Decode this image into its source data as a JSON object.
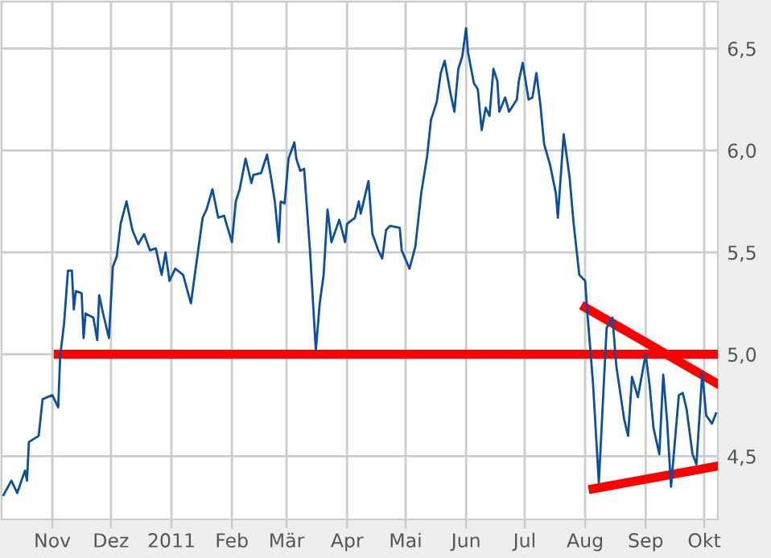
{
  "chart_data": {
    "type": "line",
    "x": [
      "2010-10-07",
      "2010-10-11",
      "2010-10-14",
      "2010-10-18",
      "2010-10-19",
      "2010-10-20",
      "2010-10-25",
      "2010-10-27",
      "2010-11-01",
      "2010-11-04",
      "2010-11-05",
      "2010-11-07",
      "2010-11-09",
      "2010-11-11",
      "2010-11-12",
      "2010-11-13",
      "2010-11-16",
      "2010-11-17",
      "2010-11-18",
      "2010-11-22",
      "2010-11-24",
      "2010-11-25",
      "2010-11-27",
      "2010-11-30",
      "2010-12-02",
      "2010-12-04",
      "2010-12-06",
      "2010-12-09",
      "2010-12-12",
      "2010-12-15",
      "2010-12-18",
      "2010-12-21",
      "2010-12-24",
      "2010-12-27",
      "2010-12-29",
      "2010-12-31",
      "2011-01-03",
      "2011-01-07",
      "2011-01-11",
      "2011-01-13",
      "2011-01-17",
      "2011-01-19",
      "2011-01-22",
      "2011-01-25",
      "2011-01-28",
      "2011-02-01",
      "2011-02-03",
      "2011-02-05",
      "2011-02-08",
      "2011-02-11",
      "2011-02-12",
      "2011-02-16",
      "2011-02-19",
      "2011-02-21",
      "2011-02-23",
      "2011-02-25",
      "2011-02-26",
      "2011-02-28",
      "2011-03-02",
      "2011-03-05",
      "2011-03-06",
      "2011-03-08",
      "2011-03-10",
      "2011-03-13",
      "2011-03-16",
      "2011-03-18",
      "2011-03-20",
      "2011-03-22",
      "2011-03-24",
      "2011-03-28",
      "2011-03-31",
      "2011-04-01",
      "2011-04-05",
      "2011-04-07",
      "2011-04-08",
      "2011-04-12",
      "2011-04-14",
      "2011-04-17",
      "2011-04-19",
      "2011-04-21",
      "2011-04-23",
      "2011-04-28",
      "2011-04-29",
      "2011-05-03",
      "2011-05-06",
      "2011-05-09",
      "2011-05-12",
      "2011-05-14",
      "2011-05-17",
      "2011-05-19",
      "2011-05-21",
      "2011-05-24",
      "2011-05-26",
      "2011-05-28",
      "2011-05-30",
      "2011-06-01",
      "2011-06-02",
      "2011-06-05",
      "2011-06-07",
      "2011-06-09",
      "2011-06-11",
      "2011-06-13",
      "2011-06-15",
      "2011-06-17",
      "2011-06-18",
      "2011-06-21",
      "2011-06-23",
      "2011-06-27",
      "2011-06-28",
      "2011-06-30",
      "2011-07-03",
      "2011-07-05",
      "2011-07-07",
      "2011-07-09",
      "2011-07-11",
      "2011-07-14",
      "2011-07-17",
      "2011-07-18",
      "2011-07-21",
      "2011-07-24",
      "2011-07-26",
      "2011-07-29",
      "2011-08-01",
      "2011-08-02",
      "2011-08-05",
      "2011-08-08",
      "2011-08-12",
      "2011-08-15",
      "2011-08-17",
      "2011-08-21",
      "2011-08-23",
      "2011-08-25",
      "2011-08-28",
      "2011-09-01",
      "2011-09-03",
      "2011-09-05",
      "2011-09-08",
      "2011-09-10",
      "2011-09-12",
      "2011-09-14",
      "2011-09-18",
      "2011-09-20",
      "2011-09-22",
      "2011-09-25",
      "2011-09-27",
      "2011-09-30",
      "2011-10-02",
      "2011-10-05",
      "2011-10-07"
    ],
    "series": [
      {
        "color": "#0a4fa0",
        "values": [
          4.31,
          4.38,
          4.32,
          4.43,
          4.38,
          4.57,
          4.6,
          4.78,
          4.8,
          4.74,
          4.99,
          5.15,
          5.41,
          5.41,
          5.22,
          5.31,
          5.3,
          5.08,
          5.2,
          5.18,
          5.07,
          5.29,
          5.2,
          5.08,
          5.43,
          5.48,
          5.64,
          5.75,
          5.61,
          5.54,
          5.59,
          5.51,
          5.52,
          5.39,
          5.5,
          5.36,
          5.42,
          5.39,
          5.25,
          5.39,
          5.67,
          5.71,
          5.81,
          5.67,
          5.68,
          5.55,
          5.75,
          5.81,
          5.96,
          5.84,
          5.88,
          5.89,
          5.98,
          5.87,
          5.75,
          5.55,
          5.75,
          5.74,
          5.96,
          6.04,
          5.96,
          5.9,
          5.91,
          5.51,
          5.02,
          5.25,
          5.39,
          5.71,
          5.55,
          5.66,
          5.55,
          5.64,
          5.67,
          5.75,
          5.69,
          5.85,
          5.59,
          5.51,
          5.47,
          5.61,
          5.63,
          5.62,
          5.51,
          5.42,
          5.53,
          5.79,
          5.97,
          6.15,
          6.24,
          6.38,
          6.44,
          6.28,
          6.19,
          6.4,
          6.46,
          6.6,
          6.48,
          6.33,
          6.3,
          6.1,
          6.21,
          6.17,
          6.4,
          6.34,
          6.19,
          6.26,
          6.19,
          6.25,
          6.34,
          6.43,
          6.25,
          6.26,
          6.38,
          6.23,
          6.03,
          5.93,
          5.79,
          5.67,
          6.08,
          5.87,
          5.65,
          5.39,
          5.36,
          5.22,
          4.86,
          4.37,
          5.13,
          5.18,
          4.94,
          4.68,
          4.6,
          4.89,
          4.79,
          5.0,
          4.85,
          4.64,
          4.51,
          4.9,
          4.67,
          4.35,
          4.8,
          4.81,
          4.73,
          4.51,
          4.46,
          4.91,
          4.7,
          4.66,
          4.71
        ]
      },
      {
        "type": "line",
        "color": "#ff0000",
        "x": [
          "2010-11-04",
          "2011-10-08"
        ],
        "values": [
          5.0,
          5.0
        ]
      },
      {
        "type": "line",
        "color": "#ff0000",
        "x": [
          "2011-08-01",
          "2011-10-07"
        ],
        "values": [
          5.23,
          4.86
        ]
      },
      {
        "type": "line",
        "color": "#ff0000",
        "x": [
          "2011-08-05",
          "2011-10-07"
        ],
        "values": [
          4.34,
          4.45
        ]
      }
    ],
    "xlim": [
      "2010-10-06",
      "2011-10-08"
    ],
    "xticks": [
      {
        "value": "2010-11-01",
        "label": "Nov"
      },
      {
        "value": "2010-12-01",
        "label": "Dez"
      },
      {
        "value": "2011-01-01",
        "label": "2011"
      },
      {
        "value": "2011-02-01",
        "label": "Feb"
      },
      {
        "value": "2011-03-01",
        "label": "Mär"
      },
      {
        "value": "2011-04-01",
        "label": "Apr"
      },
      {
        "value": "2011-05-01",
        "label": "Mai"
      },
      {
        "value": "2011-06-01",
        "label": "Jun"
      },
      {
        "value": "2011-07-01",
        "label": "Jul"
      },
      {
        "value": "2011-08-01",
        "label": "Aug"
      },
      {
        "value": "2011-09-01",
        "label": "Sep"
      },
      {
        "value": "2011-10-01",
        "label": "Okt"
      }
    ],
    "ylim": [
      4.19,
      6.73
    ],
    "yticks": [
      {
        "value": 4.5,
        "label": "4,5"
      },
      {
        "value": 5.0,
        "label": "5,0"
      },
      {
        "value": 5.5,
        "label": "5,5"
      },
      {
        "value": 6.0,
        "label": "6,0"
      },
      {
        "value": 6.5,
        "label": "6,5"
      }
    ],
    "grid": true,
    "legend": false
  }
}
